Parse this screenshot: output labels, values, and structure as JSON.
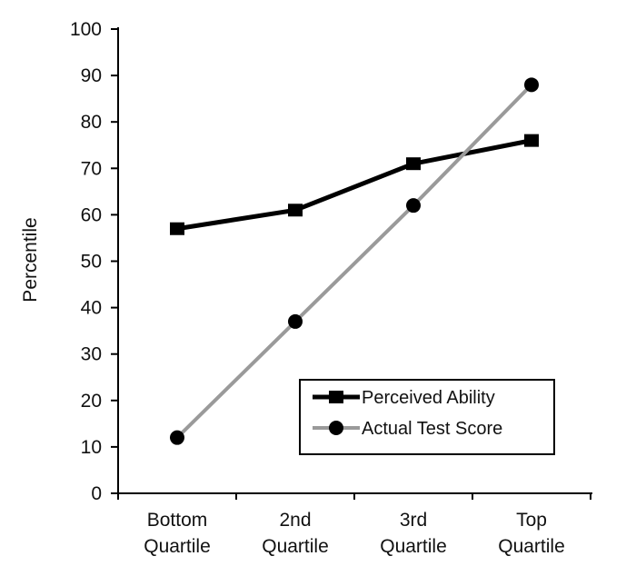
{
  "chart_data": {
    "type": "line",
    "categories": [
      [
        "Bottom",
        "Quartile"
      ],
      [
        "2nd",
        "Quartile"
      ],
      [
        "3rd",
        "Quartile"
      ],
      [
        "Top",
        "Quartile"
      ]
    ],
    "ylabel": "Percentile",
    "xlabel": "",
    "title": "",
    "ylim": [
      0,
      100
    ],
    "yticks": [
      0,
      10,
      20,
      30,
      40,
      50,
      60,
      70,
      80,
      90,
      100
    ],
    "grid": false,
    "legend_position": "bottom-right",
    "series": [
      {
        "name": "Perceived Ability",
        "values": [
          57,
          61,
          71,
          76
        ],
        "marker": "square",
        "color": "#000000"
      },
      {
        "name": "Actual Test Score",
        "values": [
          12,
          37,
          62,
          88
        ],
        "marker": "circle",
        "color": "#9a9a9a"
      }
    ]
  }
}
